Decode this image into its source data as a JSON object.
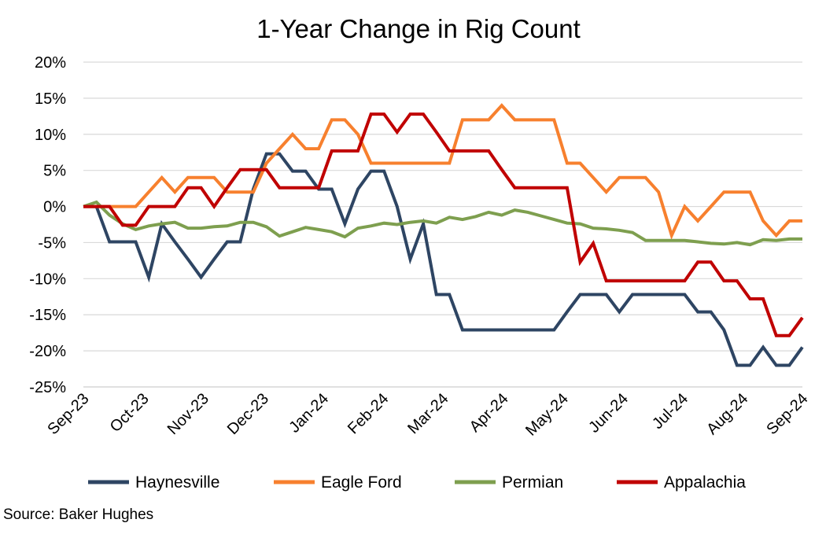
{
  "chart_data": {
    "type": "line",
    "title": "1-Year Change in Rig Count",
    "source": "Source: Baker Hughes",
    "xlabel": "",
    "ylabel": "",
    "y_format": "percent",
    "ylim": [
      -25,
      20
    ],
    "y_ticks": [
      20,
      15,
      10,
      5,
      0,
      -5,
      -10,
      -15,
      -20,
      -25
    ],
    "x_ticks": [
      "Sep-23",
      "Oct-23",
      "Nov-23",
      "Dec-23",
      "Jan-24",
      "Feb-24",
      "Mar-24",
      "Apr-24",
      "May-24",
      "Jun-24",
      "Jul-24",
      "Aug-24",
      "Sep-24"
    ],
    "x": [
      "2023-09-01",
      "2023-09-08",
      "2023-09-15",
      "2023-09-22",
      "2023-09-29",
      "2023-10-06",
      "2023-10-13",
      "2023-10-20",
      "2023-10-27",
      "2023-11-03",
      "2023-11-10",
      "2023-11-17",
      "2023-11-24",
      "2023-12-01",
      "2023-12-08",
      "2023-12-15",
      "2023-12-22",
      "2023-12-29",
      "2024-01-05",
      "2024-01-12",
      "2024-01-19",
      "2024-01-26",
      "2024-02-02",
      "2024-02-09",
      "2024-02-16",
      "2024-02-23",
      "2024-03-01",
      "2024-03-08",
      "2024-03-15",
      "2024-03-22",
      "2024-03-29",
      "2024-04-05",
      "2024-04-12",
      "2024-04-19",
      "2024-04-26",
      "2024-05-03",
      "2024-05-10",
      "2024-05-17",
      "2024-05-24",
      "2024-05-31",
      "2024-06-07",
      "2024-06-14",
      "2024-06-21",
      "2024-06-28",
      "2024-07-05",
      "2024-07-12",
      "2024-07-19",
      "2024-07-26",
      "2024-08-02",
      "2024-08-09",
      "2024-08-16",
      "2024-08-23",
      "2024-08-30",
      "2024-09-06",
      "2024-09-13",
      "2024-09-20"
    ],
    "gridlines": true,
    "legend_position": "bottom",
    "series": [
      {
        "name": "Haynesville",
        "color": "#2E4563",
        "values": [
          0,
          0,
          -4.9,
          -4.9,
          -4.9,
          -9.8,
          -2.4,
          -4.9,
          -7.3,
          -9.8,
          -7.3,
          -4.9,
          -4.9,
          2.4,
          7.3,
          7.3,
          4.9,
          4.9,
          2.4,
          2.4,
          -2.4,
          2.4,
          4.9,
          4.9,
          0,
          -7.3,
          -2.4,
          -12.2,
          -12.2,
          -17.1,
          -17.1,
          -17.1,
          -17.1,
          -17.1,
          -17.1,
          -17.1,
          -17.1,
          -14.6,
          -12.2,
          -12.2,
          -12.2,
          -14.6,
          -12.2,
          -12.2,
          -12.2,
          -12.2,
          -12.2,
          -14.6,
          -14.6,
          -17.1,
          -22,
          -22,
          -19.5,
          -22,
          -22,
          -19.5
        ]
      },
      {
        "name": "Eagle Ford",
        "color": "#F7802E",
        "values": [
          0,
          0,
          0,
          0,
          0,
          2,
          4,
          2,
          4,
          4,
          4,
          2,
          2,
          2,
          6,
          8,
          10,
          8,
          8,
          12,
          12,
          10,
          6,
          6,
          6,
          6,
          6,
          6,
          6,
          12,
          12,
          12,
          14,
          12,
          12,
          12,
          12,
          6,
          6,
          4,
          2,
          4,
          4,
          4,
          2,
          -4,
          0,
          -2,
          0,
          2,
          2,
          2,
          -2,
          -4,
          -2,
          -2
        ]
      },
      {
        "name": "Permian",
        "color": "#7E9F4F",
        "values": [
          0,
          0.6,
          -1.2,
          -2.4,
          -3.2,
          -2.7,
          -2.4,
          -2.2,
          -3,
          -3,
          -2.8,
          -2.7,
          -2.2,
          -2.2,
          -2.8,
          -4.1,
          -3.5,
          -2.9,
          -3.2,
          -3.5,
          -4.2,
          -3,
          -2.7,
          -2.3,
          -2.5,
          -2.2,
          -2,
          -2.3,
          -1.5,
          -1.8,
          -1.4,
          -0.8,
          -1.2,
          -0.5,
          -0.8,
          -1.3,
          -1.8,
          -2.3,
          -2.4,
          -3,
          -3.1,
          -3.3,
          -3.6,
          -4.7,
          -4.7,
          -4.7,
          -4.7,
          -4.9,
          -5.1,
          -5.2,
          -5,
          -5.3,
          -4.6,
          -4.7,
          -4.5,
          -4.5
        ]
      },
      {
        "name": "Appalachia",
        "color": "#C00000",
        "values": [
          0,
          0,
          0,
          -2.6,
          -2.6,
          0,
          0,
          0,
          2.6,
          2.6,
          0,
          2.6,
          5.1,
          5.1,
          5.1,
          2.6,
          2.6,
          2.6,
          2.6,
          7.7,
          7.7,
          7.7,
          12.8,
          12.8,
          10.3,
          12.8,
          12.8,
          10.3,
          7.7,
          7.7,
          7.7,
          7.7,
          5.1,
          2.6,
          2.6,
          2.6,
          2.6,
          2.6,
          -7.7,
          -5.1,
          -10.3,
          -10.3,
          -10.3,
          -10.3,
          -10.3,
          -10.3,
          -10.3,
          -7.7,
          -7.7,
          -10.3,
          -10.3,
          -12.8,
          -12.8,
          -17.9,
          -17.9,
          -15.4
        ]
      }
    ]
  }
}
